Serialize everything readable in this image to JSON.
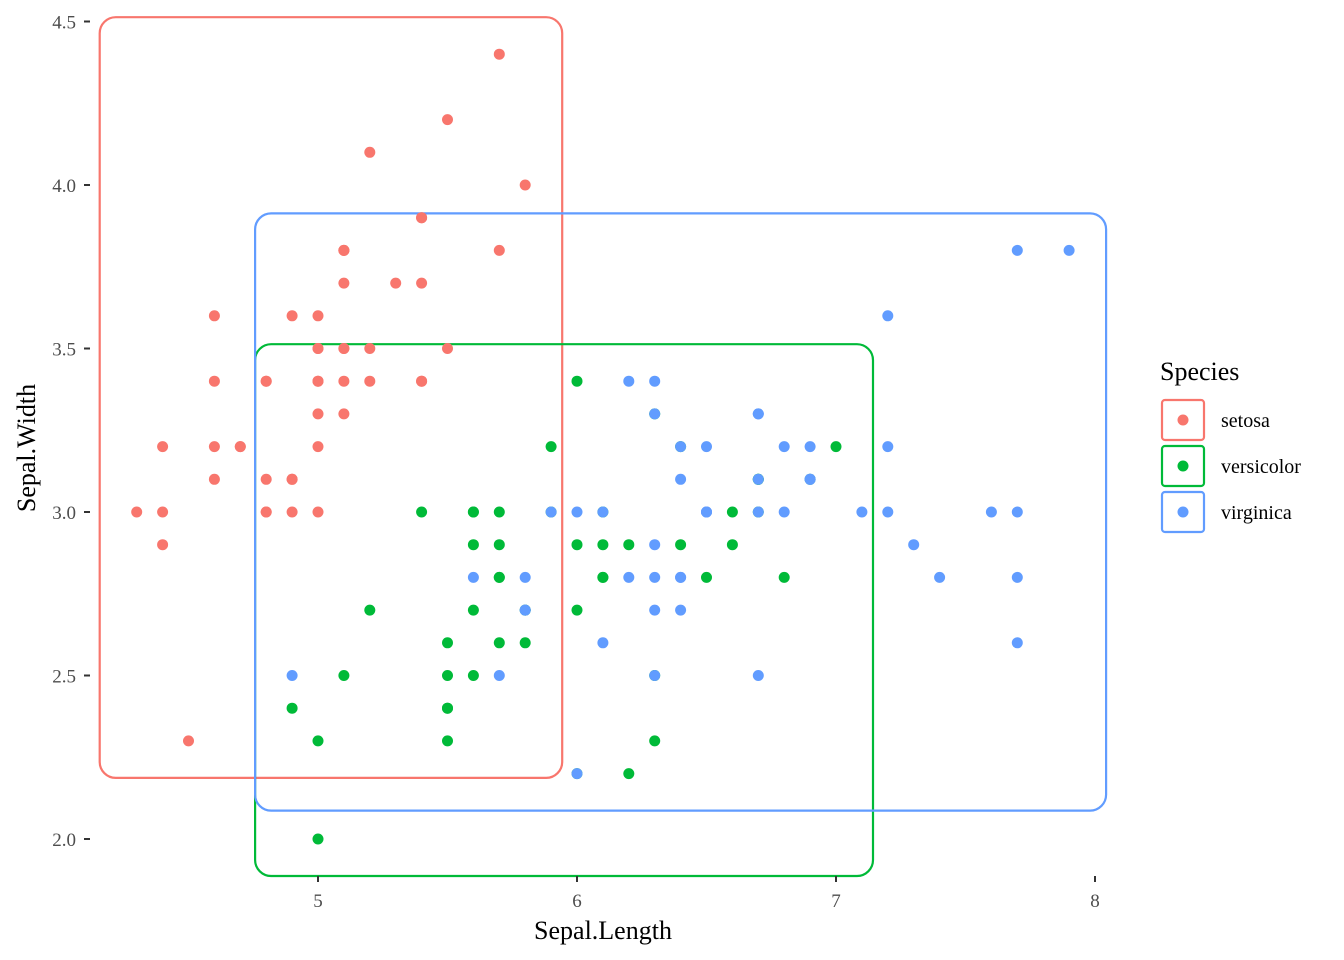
{
  "chart_data": {
    "type": "scatter",
    "title": "",
    "xlabel": "Sepal.Length",
    "ylabel": "Sepal.Width",
    "xlim": [
      4.2,
      8.0
    ],
    "ylim": [
      1.9,
      4.5
    ],
    "x_ticks": [
      5,
      6,
      7,
      8
    ],
    "y_ticks": [
      2.0,
      2.5,
      3.0,
      3.5,
      4.0,
      4.5
    ],
    "x_tick_labels": [
      "5",
      "6",
      "7",
      "8"
    ],
    "y_tick_labels": [
      "2.0",
      "2.5",
      "3.0",
      "3.5",
      "4.0",
      "4.5"
    ],
    "grid": false,
    "legend": {
      "title": "Species",
      "position": "right"
    },
    "series": [
      {
        "name": "setosa",
        "color": "#F8766D",
        "box": {
          "xmin": 4.3,
          "xmax": 5.8,
          "ymin": 2.3,
          "ymax": 4.4
        },
        "points": [
          [
            5.1,
            3.5
          ],
          [
            4.9,
            3.0
          ],
          [
            4.7,
            3.2
          ],
          [
            4.6,
            3.1
          ],
          [
            5.0,
            3.6
          ],
          [
            5.4,
            3.9
          ],
          [
            4.6,
            3.4
          ],
          [
            5.0,
            3.4
          ],
          [
            4.4,
            2.9
          ],
          [
            4.9,
            3.1
          ],
          [
            5.4,
            3.7
          ],
          [
            4.8,
            3.4
          ],
          [
            4.8,
            3.0
          ],
          [
            4.3,
            3.0
          ],
          [
            5.8,
            4.0
          ],
          [
            5.7,
            4.4
          ],
          [
            5.4,
            3.9
          ],
          [
            5.1,
            3.5
          ],
          [
            5.7,
            3.8
          ],
          [
            5.1,
            3.8
          ],
          [
            5.4,
            3.4
          ],
          [
            5.1,
            3.7
          ],
          [
            4.6,
            3.6
          ],
          [
            5.1,
            3.3
          ],
          [
            4.8,
            3.4
          ],
          [
            5.0,
            3.0
          ],
          [
            5.0,
            3.4
          ],
          [
            5.2,
            3.5
          ],
          [
            5.2,
            3.4
          ],
          [
            4.7,
            3.2
          ],
          [
            4.8,
            3.1
          ],
          [
            5.4,
            3.4
          ],
          [
            5.2,
            4.1
          ],
          [
            5.5,
            4.2
          ],
          [
            4.9,
            3.1
          ],
          [
            5.0,
            3.2
          ],
          [
            5.5,
            3.5
          ],
          [
            4.9,
            3.6
          ],
          [
            4.4,
            3.0
          ],
          [
            5.1,
            3.4
          ],
          [
            5.0,
            3.5
          ],
          [
            4.5,
            2.3
          ],
          [
            4.4,
            3.2
          ],
          [
            5.0,
            3.5
          ],
          [
            5.1,
            3.8
          ],
          [
            4.8,
            3.0
          ],
          [
            5.1,
            3.8
          ],
          [
            4.6,
            3.2
          ],
          [
            5.3,
            3.7
          ],
          [
            5.0,
            3.3
          ]
        ]
      },
      {
        "name": "versicolor",
        "color": "#00BA38",
        "box": {
          "xmin": 4.9,
          "xmax": 7.0,
          "ymin": 2.0,
          "ymax": 3.4
        },
        "points": [
          [
            7.0,
            3.2
          ],
          [
            6.4,
            3.2
          ],
          [
            6.9,
            3.1
          ],
          [
            5.5,
            2.3
          ],
          [
            6.5,
            2.8
          ],
          [
            5.7,
            2.8
          ],
          [
            6.3,
            3.3
          ],
          [
            4.9,
            2.4
          ],
          [
            6.6,
            2.9
          ],
          [
            5.2,
            2.7
          ],
          [
            5.0,
            2.0
          ],
          [
            5.9,
            3.0
          ],
          [
            6.0,
            2.2
          ],
          [
            6.1,
            2.9
          ],
          [
            5.6,
            2.9
          ],
          [
            6.7,
            3.1
          ],
          [
            5.6,
            3.0
          ],
          [
            5.8,
            2.7
          ],
          [
            6.2,
            2.2
          ],
          [
            5.6,
            2.5
          ],
          [
            5.9,
            3.2
          ],
          [
            6.1,
            2.8
          ],
          [
            6.3,
            2.5
          ],
          [
            6.1,
            2.8
          ],
          [
            6.4,
            2.9
          ],
          [
            6.6,
            3.0
          ],
          [
            6.8,
            2.8
          ],
          [
            6.7,
            3.0
          ],
          [
            6.0,
            2.9
          ],
          [
            5.7,
            2.6
          ],
          [
            5.5,
            2.4
          ],
          [
            5.5,
            2.4
          ],
          [
            5.8,
            2.7
          ],
          [
            6.0,
            2.7
          ],
          [
            5.4,
            3.0
          ],
          [
            6.0,
            3.4
          ],
          [
            6.7,
            3.1
          ],
          [
            6.3,
            2.3
          ],
          [
            5.6,
            3.0
          ],
          [
            5.5,
            2.5
          ],
          [
            5.5,
            2.6
          ],
          [
            6.1,
            3.0
          ],
          [
            5.8,
            2.6
          ],
          [
            5.0,
            2.3
          ],
          [
            5.6,
            2.7
          ],
          [
            5.7,
            3.0
          ],
          [
            5.7,
            2.9
          ],
          [
            6.2,
            2.9
          ],
          [
            5.1,
            2.5
          ],
          [
            5.7,
            2.8
          ]
        ]
      },
      {
        "name": "virginica",
        "color": "#619CFF",
        "box": {
          "xmin": 4.9,
          "xmax": 7.9,
          "ymin": 2.2,
          "ymax": 3.8
        },
        "points": [
          [
            6.3,
            3.3
          ],
          [
            5.8,
            2.7
          ],
          [
            7.1,
            3.0
          ],
          [
            6.3,
            2.9
          ],
          [
            6.5,
            3.0
          ],
          [
            7.6,
            3.0
          ],
          [
            4.9,
            2.5
          ],
          [
            7.3,
            2.9
          ],
          [
            6.7,
            2.5
          ],
          [
            7.2,
            3.6
          ],
          [
            6.5,
            3.2
          ],
          [
            6.4,
            2.7
          ],
          [
            6.8,
            3.0
          ],
          [
            5.7,
            2.5
          ],
          [
            5.8,
            2.8
          ],
          [
            6.4,
            3.2
          ],
          [
            6.5,
            3.0
          ],
          [
            7.7,
            3.8
          ],
          [
            7.7,
            2.6
          ],
          [
            6.0,
            2.2
          ],
          [
            6.9,
            3.2
          ],
          [
            5.6,
            2.8
          ],
          [
            7.7,
            2.8
          ],
          [
            6.3,
            2.7
          ],
          [
            6.7,
            3.3
          ],
          [
            7.2,
            3.2
          ],
          [
            6.2,
            2.8
          ],
          [
            6.1,
            3.0
          ],
          [
            6.4,
            2.8
          ],
          [
            7.2,
            3.0
          ],
          [
            7.4,
            2.8
          ],
          [
            7.9,
            3.8
          ],
          [
            6.4,
            2.8
          ],
          [
            6.3,
            2.8
          ],
          [
            6.1,
            2.6
          ],
          [
            7.7,
            3.0
          ],
          [
            6.3,
            3.4
          ],
          [
            6.4,
            3.1
          ],
          [
            6.0,
            3.0
          ],
          [
            6.9,
            3.1
          ],
          [
            6.7,
            3.1
          ],
          [
            6.9,
            3.1
          ],
          [
            5.8,
            2.7
          ],
          [
            6.8,
            3.2
          ],
          [
            6.7,
            3.3
          ],
          [
            6.7,
            3.0
          ],
          [
            6.3,
            2.5
          ],
          [
            6.5,
            3.0
          ],
          [
            6.2,
            3.4
          ],
          [
            5.9,
            3.0
          ]
        ]
      }
    ]
  }
}
